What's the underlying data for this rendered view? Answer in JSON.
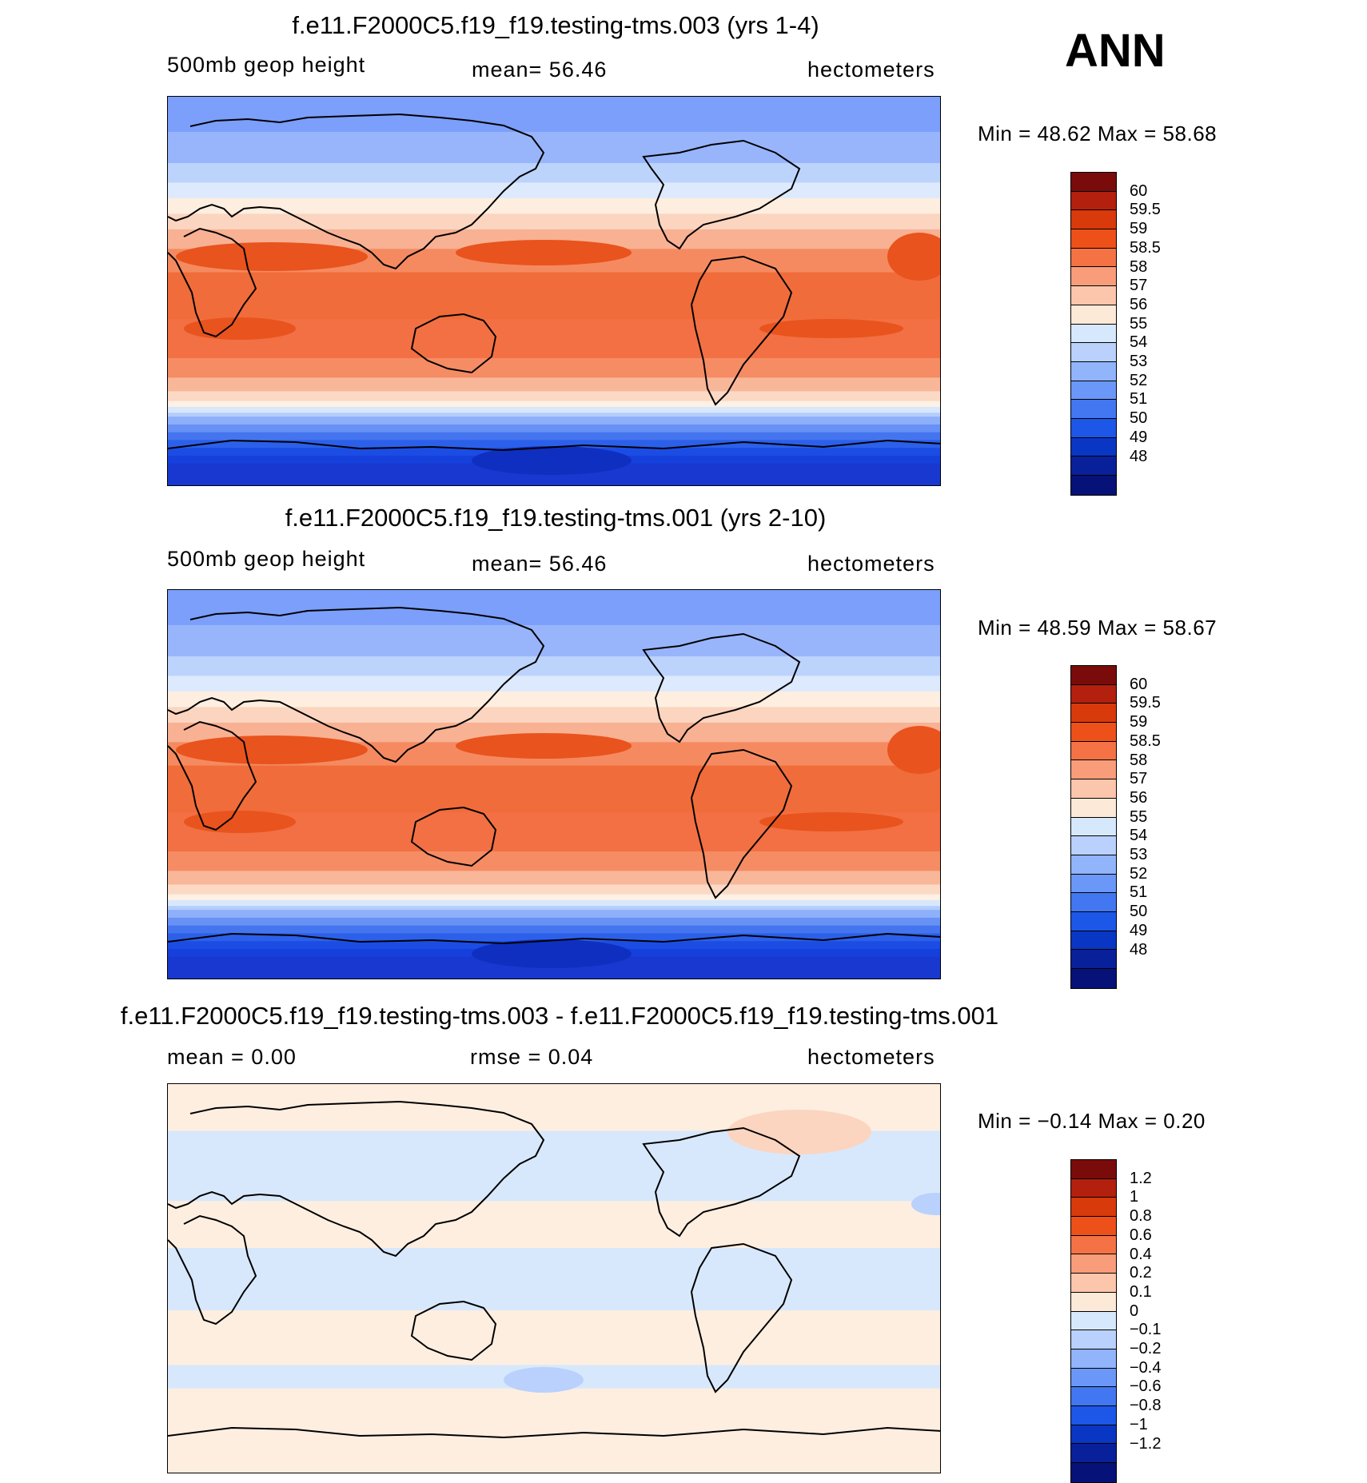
{
  "ann_label": "ANN",
  "panels": [
    {
      "title": "f.e11.F2000C5.f19_f19.testing-tms.003 (yrs 1-4)",
      "left_label": "500mb geop height",
      "mid_label": "mean=   56.46",
      "units": "hectometers",
      "minmax": "Min =   48.62 Max =   58.68",
      "colorbar": {
        "colors": [
          "#7a0b0b",
          "#b3200e",
          "#d83a0c",
          "#ee5019",
          "#f47244",
          "#f89c79",
          "#fbc6ac",
          "#fde9d7",
          "#d6e8fb",
          "#b9d1fc",
          "#91b4fb",
          "#6b97f8",
          "#4277f1",
          "#1d57e8",
          "#0a36c4",
          "#08219a",
          "#061278"
        ],
        "labels": [
          "60",
          "59.5",
          "59",
          "58.5",
          "58",
          "57",
          "56",
          "55",
          "54",
          "53",
          "52",
          "51",
          "50",
          "49",
          "48"
        ]
      },
      "bands": [
        "#7b9ffa",
        "#98b5fb",
        "#bcd3fc",
        "#dde9fc",
        "#fdeee0",
        "#fbd5bf",
        "#f8b193",
        "#f58a60",
        "#f06c3a",
        "#f27043",
        "#f58c64",
        "#f9b79a",
        "#fbd9c5",
        "#fdf0e4",
        "#d8e8fc",
        "#b3cdfc",
        "#8eb0fb",
        "#6891f6",
        "#4574ef",
        "#2c60ea",
        "#1b4de5",
        "#1640db",
        "#1838cf"
      ],
      "band_stops": [
        0,
        0.09,
        0.17,
        0.22,
        0.26,
        0.3,
        0.34,
        0.39,
        0.45,
        0.57,
        0.67,
        0.72,
        0.755,
        0.78,
        0.795,
        0.81,
        0.82,
        0.84,
        0.86,
        0.88,
        0.9,
        0.92,
        0.94,
        1
      ]
    },
    {
      "title": "f.e11.F2000C5.f19_f19.testing-tms.001 (yrs 2-10)",
      "left_label": "500mb geop height",
      "mid_label": "mean=   56.46",
      "units": "hectometers",
      "minmax": "Min =   48.59 Max =   58.67",
      "colorbar": {
        "colors": [
          "#7a0b0b",
          "#b3200e",
          "#d83a0c",
          "#ee5019",
          "#f47244",
          "#f89c79",
          "#fbc6ac",
          "#fde9d7",
          "#d6e8fb",
          "#b9d1fc",
          "#91b4fb",
          "#6b97f8",
          "#4277f1",
          "#1d57e8",
          "#0a36c4",
          "#08219a",
          "#061278"
        ],
        "labels": [
          "60",
          "59.5",
          "59",
          "58.5",
          "58",
          "57",
          "56",
          "55",
          "54",
          "53",
          "52",
          "51",
          "50",
          "49",
          "48"
        ]
      },
      "bands": [
        "#7b9ffa",
        "#98b5fb",
        "#bcd3fc",
        "#dde9fc",
        "#fdeee0",
        "#fbd5bf",
        "#f8b193",
        "#f58a60",
        "#f06c3a",
        "#f27043",
        "#f58c64",
        "#f9b79a",
        "#fbd9c5",
        "#fdf0e4",
        "#d8e8fc",
        "#b3cdfc",
        "#8eb0fb",
        "#6891f6",
        "#4574ef",
        "#2c60ea",
        "#1b4de5",
        "#1640db",
        "#1838cf"
      ],
      "band_stops": [
        0,
        0.09,
        0.17,
        0.22,
        0.26,
        0.3,
        0.34,
        0.39,
        0.45,
        0.57,
        0.67,
        0.72,
        0.755,
        0.78,
        0.795,
        0.81,
        0.82,
        0.84,
        0.86,
        0.88,
        0.9,
        0.92,
        0.94,
        1
      ]
    },
    {
      "title": "f.e11.F2000C5.f19_f19.testing-tms.003 - f.e11.F2000C5.f19_f19.testing-tms.001",
      "left_label": "mean =    0.00",
      "mid_label": "rmse =    0.04",
      "units": "hectometers",
      "minmax": "Min =  −0.14 Max =    0.20",
      "colorbar": {
        "colors": [
          "#7a0b0b",
          "#b3200e",
          "#d83a0c",
          "#ee5019",
          "#f47244",
          "#f89c79",
          "#fbc6ac",
          "#fde9d7",
          "#d6e8fb",
          "#b9d1fc",
          "#91b4fb",
          "#6b97f8",
          "#4277f1",
          "#1d57e8",
          "#0a36c4",
          "#08219a",
          "#061278"
        ],
        "labels": [
          "1.2",
          "1",
          "0.8",
          "0.6",
          "0.4",
          "0.2",
          "0.1",
          "0",
          "−0.1",
          "−0.2",
          "−0.4",
          "−0.6",
          "−0.8",
          "−1",
          "−1.2"
        ]
      },
      "bands": [
        "#fdeee0",
        "#d8e8fc",
        "#fdeee0",
        "#d8e8fc",
        "#fdeee0",
        "#d8e8fc",
        "#fdeee0"
      ],
      "band_stops": [
        0,
        0.12,
        0.3,
        0.42,
        0.58,
        0.72,
        0.78,
        1
      ]
    }
  ]
}
